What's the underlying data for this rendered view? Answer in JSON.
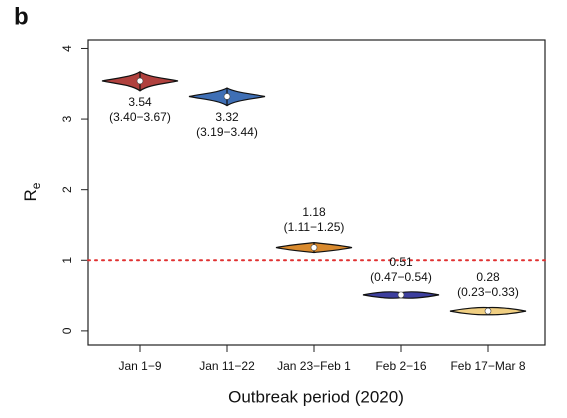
{
  "panel_label": "b",
  "chart_data": {
    "type": "violin",
    "xlabel": "Outbreak period (2020)",
    "ylabel": "R",
    "ylabel_subscript": "e",
    "categories": [
      "Jan 1−9",
      "Jan 11−22",
      "Jan 23−Feb 1",
      "Feb 2−16",
      "Feb 17−Mar 8"
    ],
    "values": [
      3.54,
      3.32,
      1.18,
      0.51,
      0.28
    ],
    "lower": [
      3.4,
      3.19,
      1.11,
      0.47,
      0.23
    ],
    "upper": [
      3.67,
      3.44,
      1.25,
      0.54,
      0.33
    ],
    "interval_labels": [
      "(3.40−3.67)",
      "(3.19−3.44)",
      "(1.11−1.25)",
      "(0.47−0.54)",
      "(0.23−0.33)"
    ],
    "colors": [
      "#b0413e",
      "#3f6fb5",
      "#d98a2e",
      "#3d3f9e",
      "#f0cf82"
    ],
    "ylim": [
      -0.2,
      4.12
    ],
    "yticks": [
      0,
      1,
      2,
      3,
      4
    ],
    "reference_line": 1,
    "reference_color": "#e03030"
  }
}
